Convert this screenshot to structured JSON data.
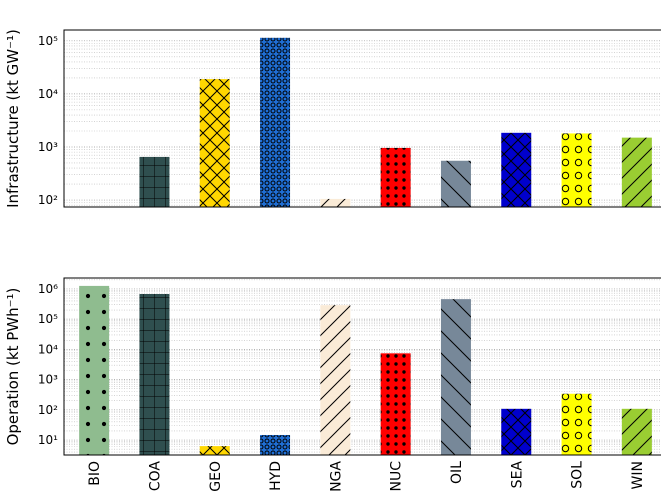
{
  "chart_data": [
    {
      "type": "bar",
      "y_label": "Infrastructure (kt GW⁻¹)",
      "values": [
        null,
        650,
        19000,
        114000,
        105,
        960,
        550,
        1850,
        1800,
        1500
      ],
      "colors": [
        "#8fbc8f",
        "#2f4f4f",
        "#ffd700",
        "#1f6fd6",
        "#faebd7",
        "#ff0000",
        "#778899",
        "#0000cd",
        "#ffff00",
        "#9acd32"
      ],
      "hatches": [
        ".",
        "+",
        "x",
        "o",
        "/",
        "..",
        "\\",
        "x",
        "O",
        "/"
      ],
      "log_scale": true,
      "grid": true,
      "ylim": [
        74,
        160000
      ],
      "yticks": [
        {
          "value": 100,
          "label": "10²"
        },
        {
          "value": 1000,
          "label": "10³"
        },
        {
          "value": 10000,
          "label": "10⁴"
        },
        {
          "value": 100000,
          "label": "10⁵"
        }
      ]
    },
    {
      "type": "bar",
      "y_label": "Operation (kt PWh⁻¹)",
      "categories": [
        "BIO",
        "COA",
        "GEO",
        "HYD",
        "NGA",
        "NUC",
        "OIL",
        "SEA",
        "SOL",
        "WIN"
      ],
      "values": [
        1260000,
        680000,
        6.3,
        14.7,
        290000,
        7400,
        460000,
        108,
        340,
        108
      ],
      "colors": [
        "#8fbc8f",
        "#2f4f4f",
        "#ffd700",
        "#1f6fd6",
        "#faebd7",
        "#ff0000",
        "#778899",
        "#0000cd",
        "#ffff00",
        "#9acd32"
      ],
      "hatches": [
        ".",
        "+",
        "x",
        "o",
        "/",
        "..",
        "\\",
        "x",
        "O",
        "/"
      ],
      "log_scale": true,
      "grid": true,
      "ylim": [
        3.2,
        2300000
      ],
      "yticks": [
        {
          "value": 10,
          "label": "10¹"
        },
        {
          "value": 100,
          "label": "10²"
        },
        {
          "value": 1000,
          "label": "10³"
        },
        {
          "value": 10000,
          "label": "10⁴"
        },
        {
          "value": 100000,
          "label": "10⁵"
        },
        {
          "value": 1000000,
          "label": "10⁶"
        }
      ]
    }
  ]
}
